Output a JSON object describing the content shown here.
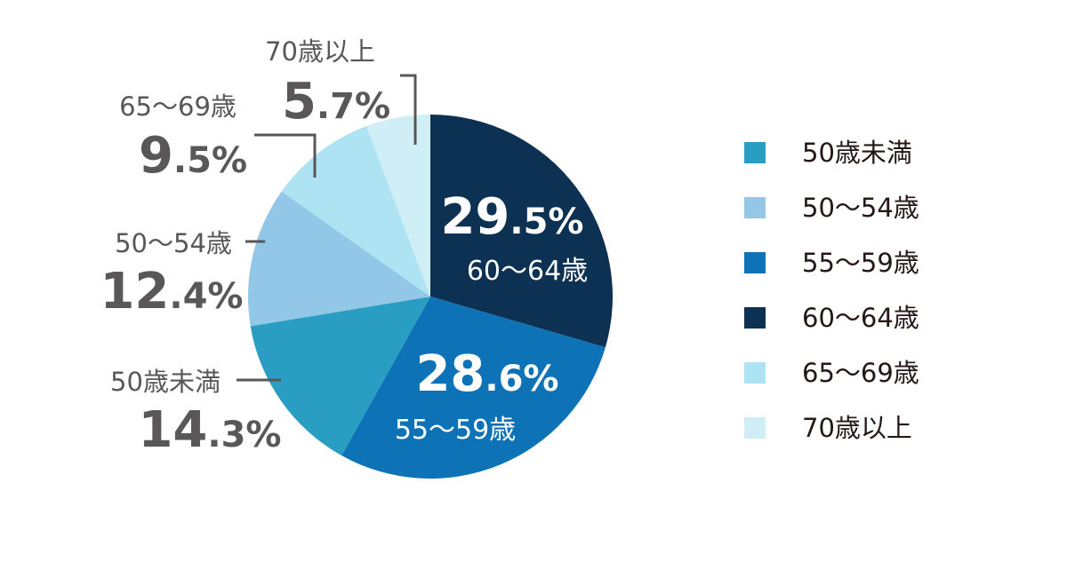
{
  "chart_data": {
    "type": "pie",
    "title": "",
    "start_angle_deg": 0,
    "direction": "clockwise",
    "slices": [
      {
        "label": "60〜64歳",
        "value": 29.5,
        "pct_int": "29",
        "pct_dec": ".5",
        "pct_sign": "%",
        "color": "#0d3152"
      },
      {
        "label": "55〜59歳",
        "value": 28.6,
        "pct_int": "28",
        "pct_dec": ".6",
        "pct_sign": "%",
        "color": "#0e73b6"
      },
      {
        "label": "50歳未満",
        "value": 14.3,
        "pct_int": "14",
        "pct_dec": ".3",
        "pct_sign": "%",
        "color": "#299dc2"
      },
      {
        "label": "50〜54歳",
        "value": 12.4,
        "pct_int": "12",
        "pct_dec": ".4",
        "pct_sign": "%",
        "color": "#92c7e8"
      },
      {
        "label": "65〜69歳",
        "value": 9.5,
        "pct_int": "9",
        "pct_dec": ".5",
        "pct_sign": "%",
        "color": "#aee3f3"
      },
      {
        "label": "70歳以上",
        "value": 5.7,
        "pct_int": "5",
        "pct_dec": ".7",
        "pct_sign": "%",
        "color": "#cfeef6"
      }
    ],
    "legend": {
      "placement": "right",
      "entries": [
        {
          "label": "50歳未満",
          "color": "#299dc2"
        },
        {
          "label": "50〜54歳",
          "color": "#92c7e8"
        },
        {
          "label": "55〜59歳",
          "color": "#0e73b6"
        },
        {
          "label": "60〜64歳",
          "color": "#0d3152"
        },
        {
          "label": "65〜69歳",
          "color": "#aee3f3"
        },
        {
          "label": "70歳以上",
          "color": "#cfeef6"
        }
      ]
    }
  }
}
